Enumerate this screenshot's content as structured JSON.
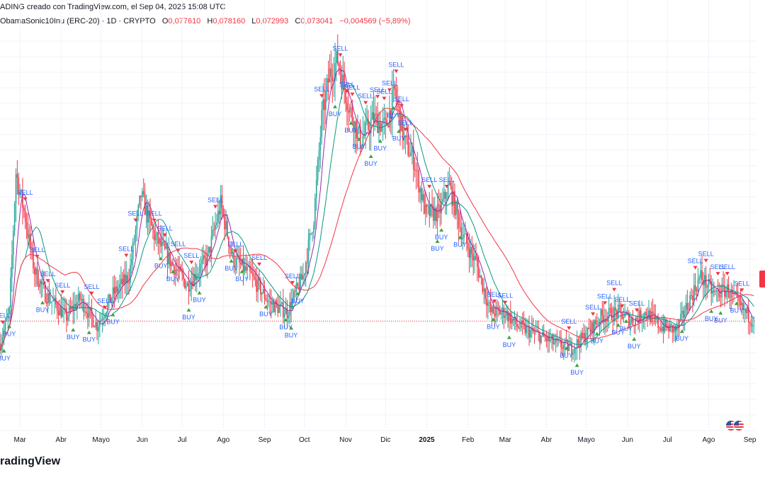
{
  "header": {
    "line1": "ADING creado con TradingView.com, el Sep 04, 2025 15:08 UTC",
    "symbol": "ObamaSonic10Inu (ERC-20) · 1D · CRYPTO",
    "ohlc": [
      {
        "key": "O",
        "value": "0,077610"
      },
      {
        "key": "H",
        "value": "0,078160"
      },
      {
        "key": "L",
        "value": "0,072993"
      },
      {
        "key": "C",
        "value": "0,073041"
      },
      {
        "key": "",
        "value": "−0,004569 (−5,89%)"
      }
    ]
  },
  "logo": "radingView",
  "colors": {
    "up": "#26a69a",
    "down": "#f23645",
    "ma_fast": "#9c27b0",
    "ma_mid": "#089981",
    "ma_slow": "#f23645",
    "buy": "#43a047",
    "sell": "#f23645",
    "label": "#2962ff"
  },
  "chart_data": {
    "type": "candlestick",
    "x_range": [
      "2024-02-15",
      "2025-09-06"
    ],
    "x_ticks": [
      {
        "label": "Mar",
        "date": "2024-03-01"
      },
      {
        "label": "Abr",
        "date": "2024-04-01"
      },
      {
        "label": "Mayo",
        "date": "2024-05-01"
      },
      {
        "label": "Jun",
        "date": "2024-06-01"
      },
      {
        "label": "Jul",
        "date": "2024-07-01"
      },
      {
        "label": "Ago",
        "date": "2024-08-01"
      },
      {
        "label": "Sep",
        "date": "2024-09-01"
      },
      {
        "label": "Oct",
        "date": "2024-10-01"
      },
      {
        "label": "Nov",
        "date": "2024-11-01"
      },
      {
        "label": "Dic",
        "date": "2024-12-01"
      },
      {
        "label": "2025",
        "date": "2025-01-01",
        "bold": true
      },
      {
        "label": "Feb",
        "date": "2025-02-01"
      },
      {
        "label": "Mar",
        "date": "2025-03-01"
      },
      {
        "label": "Abr",
        "date": "2025-04-01"
      },
      {
        "label": "Mayo",
        "date": "2025-05-01"
      },
      {
        "label": "Jun",
        "date": "2025-06-01"
      },
      {
        "label": "Jul",
        "date": "2025-07-01"
      },
      {
        "label": "Ago",
        "date": "2025-08-01"
      },
      {
        "label": "Sep",
        "date": "2025-09-01"
      }
    ],
    "price_path": [
      [
        "2024-02-15",
        0.068
      ],
      [
        "2024-02-22",
        0.075
      ],
      [
        "2024-02-27",
        0.106
      ],
      [
        "2024-03-05",
        0.096
      ],
      [
        "2024-03-12",
        0.084
      ],
      [
        "2024-03-20",
        0.079
      ],
      [
        "2024-04-05",
        0.074
      ],
      [
        "2024-04-15",
        0.078
      ],
      [
        "2024-04-28",
        0.072
      ],
      [
        "2024-05-10",
        0.079
      ],
      [
        "2024-05-22",
        0.083
      ],
      [
        "2024-05-31",
        0.101
      ],
      [
        "2024-06-10",
        0.092
      ],
      [
        "2024-06-25",
        0.085
      ],
      [
        "2024-07-05",
        0.081
      ],
      [
        "2024-07-20",
        0.087
      ],
      [
        "2024-07-30",
        0.099
      ],
      [
        "2024-08-08",
        0.087
      ],
      [
        "2024-08-22",
        0.083
      ],
      [
        "2024-09-05",
        0.077
      ],
      [
        "2024-09-18",
        0.075
      ],
      [
        "2024-09-30",
        0.083
      ],
      [
        "2024-10-08",
        0.096
      ],
      [
        "2024-10-14",
        0.118
      ],
      [
        "2024-10-20",
        0.128
      ],
      [
        "2024-10-26",
        0.131
      ],
      [
        "2024-11-03",
        0.121
      ],
      [
        "2024-11-12",
        0.113
      ],
      [
        "2024-11-22",
        0.118
      ],
      [
        "2024-12-01",
        0.116
      ],
      [
        "2024-12-08",
        0.124
      ],
      [
        "2024-12-15",
        0.113
      ],
      [
        "2024-12-22",
        0.109
      ],
      [
        "2024-12-31",
        0.097
      ],
      [
        "2025-01-10",
        0.097
      ],
      [
        "2025-01-18",
        0.103
      ],
      [
        "2025-01-28",
        0.092
      ],
      [
        "2025-02-07",
        0.086
      ],
      [
        "2025-02-18",
        0.075
      ],
      [
        "2025-03-01",
        0.075
      ],
      [
        "2025-03-10",
        0.072
      ],
      [
        "2025-03-25",
        0.07
      ],
      [
        "2025-04-08",
        0.068
      ],
      [
        "2025-04-20",
        0.067
      ],
      [
        "2025-05-01",
        0.07
      ],
      [
        "2025-05-12",
        0.074
      ],
      [
        "2025-05-25",
        0.075
      ],
      [
        "2025-06-05",
        0.073
      ],
      [
        "2025-06-15",
        0.075
      ],
      [
        "2025-06-25",
        0.072
      ],
      [
        "2025-07-08",
        0.071
      ],
      [
        "2025-07-18",
        0.078
      ],
      [
        "2025-07-26",
        0.083
      ],
      [
        "2025-08-05",
        0.079
      ],
      [
        "2025-08-15",
        0.08
      ],
      [
        "2025-08-25",
        0.076
      ],
      [
        "2025-09-04",
        0.073
      ]
    ],
    "y_range": [
      0.05,
      0.138
    ],
    "last_close": 0.073041,
    "signals": [
      {
        "type": "SELL",
        "date": "2024-02-17"
      },
      {
        "type": "BUY",
        "date": "2024-02-18"
      },
      {
        "type": "BUY",
        "date": "2024-02-22"
      },
      {
        "type": "SELL",
        "date": "2024-03-05"
      },
      {
        "type": "SELL",
        "date": "2024-03-14"
      },
      {
        "type": "SELL",
        "date": "2024-03-22"
      },
      {
        "type": "BUY",
        "date": "2024-03-18"
      },
      {
        "type": "SELL",
        "date": "2024-04-02"
      },
      {
        "type": "BUY",
        "date": "2024-04-10"
      },
      {
        "type": "SELL",
        "date": "2024-04-24"
      },
      {
        "type": "BUY",
        "date": "2024-04-22"
      },
      {
        "type": "SELL",
        "date": "2024-05-04"
      },
      {
        "type": "BUY",
        "date": "2024-05-10"
      },
      {
        "type": "SELL",
        "date": "2024-05-20"
      },
      {
        "type": "SELL",
        "date": "2024-05-27"
      },
      {
        "type": "SELL",
        "date": "2024-06-10"
      },
      {
        "type": "BUY",
        "date": "2024-06-15"
      },
      {
        "type": "SELL",
        "date": "2024-06-18"
      },
      {
        "type": "BUY",
        "date": "2024-06-24"
      },
      {
        "type": "SELL",
        "date": "2024-06-28"
      },
      {
        "type": "BUY",
        "date": "2024-07-06"
      },
      {
        "type": "SELL",
        "date": "2024-07-08"
      },
      {
        "type": "BUY",
        "date": "2024-07-14"
      },
      {
        "type": "SELL",
        "date": "2024-07-26"
      },
      {
        "type": "BUY",
        "date": "2024-08-07"
      },
      {
        "type": "SELL",
        "date": "2024-08-10"
      },
      {
        "type": "BUY",
        "date": "2024-08-15"
      },
      {
        "type": "SELL",
        "date": "2024-08-28"
      },
      {
        "type": "BUY",
        "date": "2024-09-02"
      },
      {
        "type": "BUY",
        "date": "2024-09-17"
      },
      {
        "type": "BUY",
        "date": "2024-09-21"
      },
      {
        "type": "SELL",
        "date": "2024-09-22"
      },
      {
        "type": "BUY",
        "date": "2024-09-26"
      },
      {
        "type": "SELL",
        "date": "2024-10-14"
      },
      {
        "type": "BUY",
        "date": "2024-10-24"
      },
      {
        "type": "SELL",
        "date": "2024-10-28"
      },
      {
        "type": "SELL",
        "date": "2024-11-02"
      },
      {
        "type": "BUY",
        "date": "2024-11-05"
      },
      {
        "type": "SELL",
        "date": "2024-11-06"
      },
      {
        "type": "BUY",
        "date": "2024-11-11"
      },
      {
        "type": "SELL",
        "date": "2024-11-16"
      },
      {
        "type": "BUY",
        "date": "2024-11-20"
      },
      {
        "type": "SELL",
        "date": "2024-11-25"
      },
      {
        "type": "BUY",
        "date": "2024-11-27"
      },
      {
        "type": "SELL",
        "date": "2024-11-30"
      },
      {
        "type": "SELL",
        "date": "2024-12-04"
      },
      {
        "type": "BUY",
        "date": "2024-12-07"
      },
      {
        "type": "SELL",
        "date": "2024-12-09"
      },
      {
        "type": "BUY",
        "date": "2024-12-11"
      },
      {
        "type": "SELL",
        "date": "2024-12-13"
      },
      {
        "type": "SELL",
        "date": "2024-12-16"
      },
      {
        "type": "SELL",
        "date": "2025-01-03"
      },
      {
        "type": "BUY",
        "date": "2025-01-09"
      },
      {
        "type": "BUY",
        "date": "2025-01-12"
      },
      {
        "type": "SELL",
        "date": "2025-01-16"
      },
      {
        "type": "BUY",
        "date": "2025-01-26"
      },
      {
        "type": "SELL",
        "date": "2025-02-21"
      },
      {
        "type": "BUY",
        "date": "2025-02-20"
      },
      {
        "type": "SELL",
        "date": "2025-03-01"
      },
      {
        "type": "BUY",
        "date": "2025-03-04"
      },
      {
        "type": "BUY",
        "date": "2025-04-16"
      },
      {
        "type": "SELL",
        "date": "2025-04-18"
      },
      {
        "type": "BUY",
        "date": "2025-04-24"
      },
      {
        "type": "SELL",
        "date": "2025-05-06"
      },
      {
        "type": "BUY",
        "date": "2025-05-09"
      },
      {
        "type": "SELL",
        "date": "2025-05-15"
      },
      {
        "type": "SELL",
        "date": "2025-05-22"
      },
      {
        "type": "BUY",
        "date": "2025-05-25"
      },
      {
        "type": "SELL",
        "date": "2025-05-28"
      },
      {
        "type": "BUY",
        "date": "2025-05-31"
      },
      {
        "type": "SELL",
        "date": "2025-06-08"
      },
      {
        "type": "BUY",
        "date": "2025-06-06"
      },
      {
        "type": "BUY",
        "date": "2025-07-12"
      },
      {
        "type": "SELL",
        "date": "2025-07-22"
      },
      {
        "type": "SELL",
        "date": "2025-07-30"
      },
      {
        "type": "BUY",
        "date": "2025-08-03"
      },
      {
        "type": "SELL",
        "date": "2025-08-08"
      },
      {
        "type": "BUY",
        "date": "2025-08-10"
      },
      {
        "type": "SELL",
        "date": "2025-08-15"
      },
      {
        "type": "BUY",
        "date": "2025-08-22"
      },
      {
        "type": "SELL",
        "date": "2025-08-26"
      }
    ]
  }
}
